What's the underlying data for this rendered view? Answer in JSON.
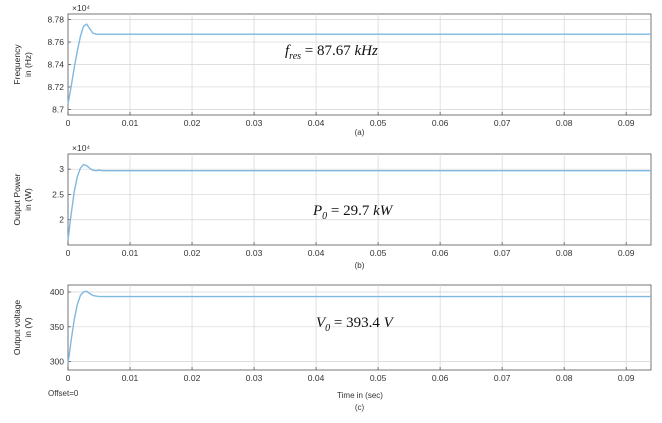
{
  "figure": {
    "offset_label": "Offset=0",
    "xlabel": "Time in (sec)",
    "colors": {
      "series": "#7fb8e0",
      "grid": "#d4d4d4",
      "frame": "#555555"
    }
  },
  "chart_data": [
    {
      "type": "line",
      "caption": "(a)",
      "ylabel": [
        "Frequency",
        "in (Hz)"
      ],
      "exponent_label": "×10⁴",
      "annotation": {
        "var": "f",
        "sub": "res",
        "value": " = 87.67 ",
        "unit": "kHz"
      },
      "xlim": [
        0,
        0.094
      ],
      "ylim": [
        8.695,
        8.785
      ],
      "xticks": [
        0,
        0.01,
        0.02,
        0.03,
        0.04,
        0.05,
        0.06,
        0.07,
        0.08,
        0.09
      ],
      "xtick_labels": [
        "0",
        "0.01",
        "0.02",
        "0.03",
        "0.04",
        "0.05",
        "0.06",
        "0.07",
        "0.08",
        "0.09"
      ],
      "yticks": [
        8.7,
        8.72,
        8.74,
        8.76,
        8.78
      ],
      "ytick_labels": [
        "8.7",
        "8.72",
        "8.74",
        "8.76",
        "8.78"
      ],
      "grid": true,
      "series": [
        {
          "x": [
            0,
            0.0005,
            0.001,
            0.0015,
            0.002,
            0.0025,
            0.003,
            0.0035,
            0.004,
            0.0045,
            0.005,
            0.006,
            0.007,
            0.01,
            0.094
          ],
          "y": [
            8.705,
            8.72,
            8.737,
            8.752,
            8.765,
            8.774,
            8.776,
            8.772,
            8.768,
            8.767,
            8.767,
            8.767,
            8.767,
            8.767,
            8.767
          ]
        }
      ]
    },
    {
      "type": "line",
      "caption": "(b)",
      "ylabel": [
        "Output Power",
        "in (W)"
      ],
      "exponent_label": "×10⁴",
      "annotation": {
        "var": "P",
        "sub": "0",
        "value": " = 29.7 ",
        "unit": "kW"
      },
      "xlim": [
        0,
        0.094
      ],
      "ylim": [
        1.5,
        3.3
      ],
      "xticks": [
        0,
        0.01,
        0.02,
        0.03,
        0.04,
        0.05,
        0.06,
        0.07,
        0.08,
        0.09
      ],
      "xtick_labels": [
        "0",
        "0.01",
        "0.02",
        "0.03",
        "0.04",
        "0.05",
        "0.06",
        "0.07",
        "0.08",
        "0.09"
      ],
      "yticks": [
        2,
        2.5,
        3
      ],
      "ytick_labels": [
        "2",
        "2.5",
        "3"
      ],
      "grid": true,
      "series": [
        {
          "x": [
            0,
            0.0005,
            0.001,
            0.0015,
            0.002,
            0.0025,
            0.003,
            0.0035,
            0.004,
            0.0045,
            0.005,
            0.0055,
            0.006,
            0.007,
            0.094
          ],
          "y": [
            1.6,
            2.1,
            2.55,
            2.85,
            3.02,
            3.09,
            3.07,
            3.02,
            2.98,
            2.97,
            2.98,
            2.97,
            2.97,
            2.97,
            2.97
          ]
        }
      ]
    },
    {
      "type": "line",
      "caption": "(c)",
      "ylabel": [
        "Output voltage",
        "in (V)"
      ],
      "exponent_label": "",
      "annotation": {
        "var": "V",
        "sub": "0",
        "value": " = 393.4 ",
        "unit": "V"
      },
      "xlim": [
        0,
        0.094
      ],
      "ylim": [
        288,
        410
      ],
      "xticks": [
        0,
        0.01,
        0.02,
        0.03,
        0.04,
        0.05,
        0.06,
        0.07,
        0.08,
        0.09
      ],
      "xtick_labels": [
        "0",
        "0.01",
        "0.02",
        "0.03",
        "0.04",
        "0.05",
        "0.06",
        "0.07",
        "0.08",
        "0.09"
      ],
      "yticks": [
        300,
        350,
        400
      ],
      "ytick_labels": [
        "300",
        "350",
        "400"
      ],
      "grid": true,
      "series": [
        {
          "x": [
            0,
            0.0005,
            0.001,
            0.0015,
            0.002,
            0.0025,
            0.003,
            0.0035,
            0.004,
            0.0045,
            0.005,
            0.006,
            0.007,
            0.094
          ],
          "y": [
            297,
            330,
            360,
            382,
            395,
            400,
            401,
            398,
            395,
            394,
            393.6,
            393.4,
            393.4,
            393.4
          ]
        }
      ]
    }
  ]
}
